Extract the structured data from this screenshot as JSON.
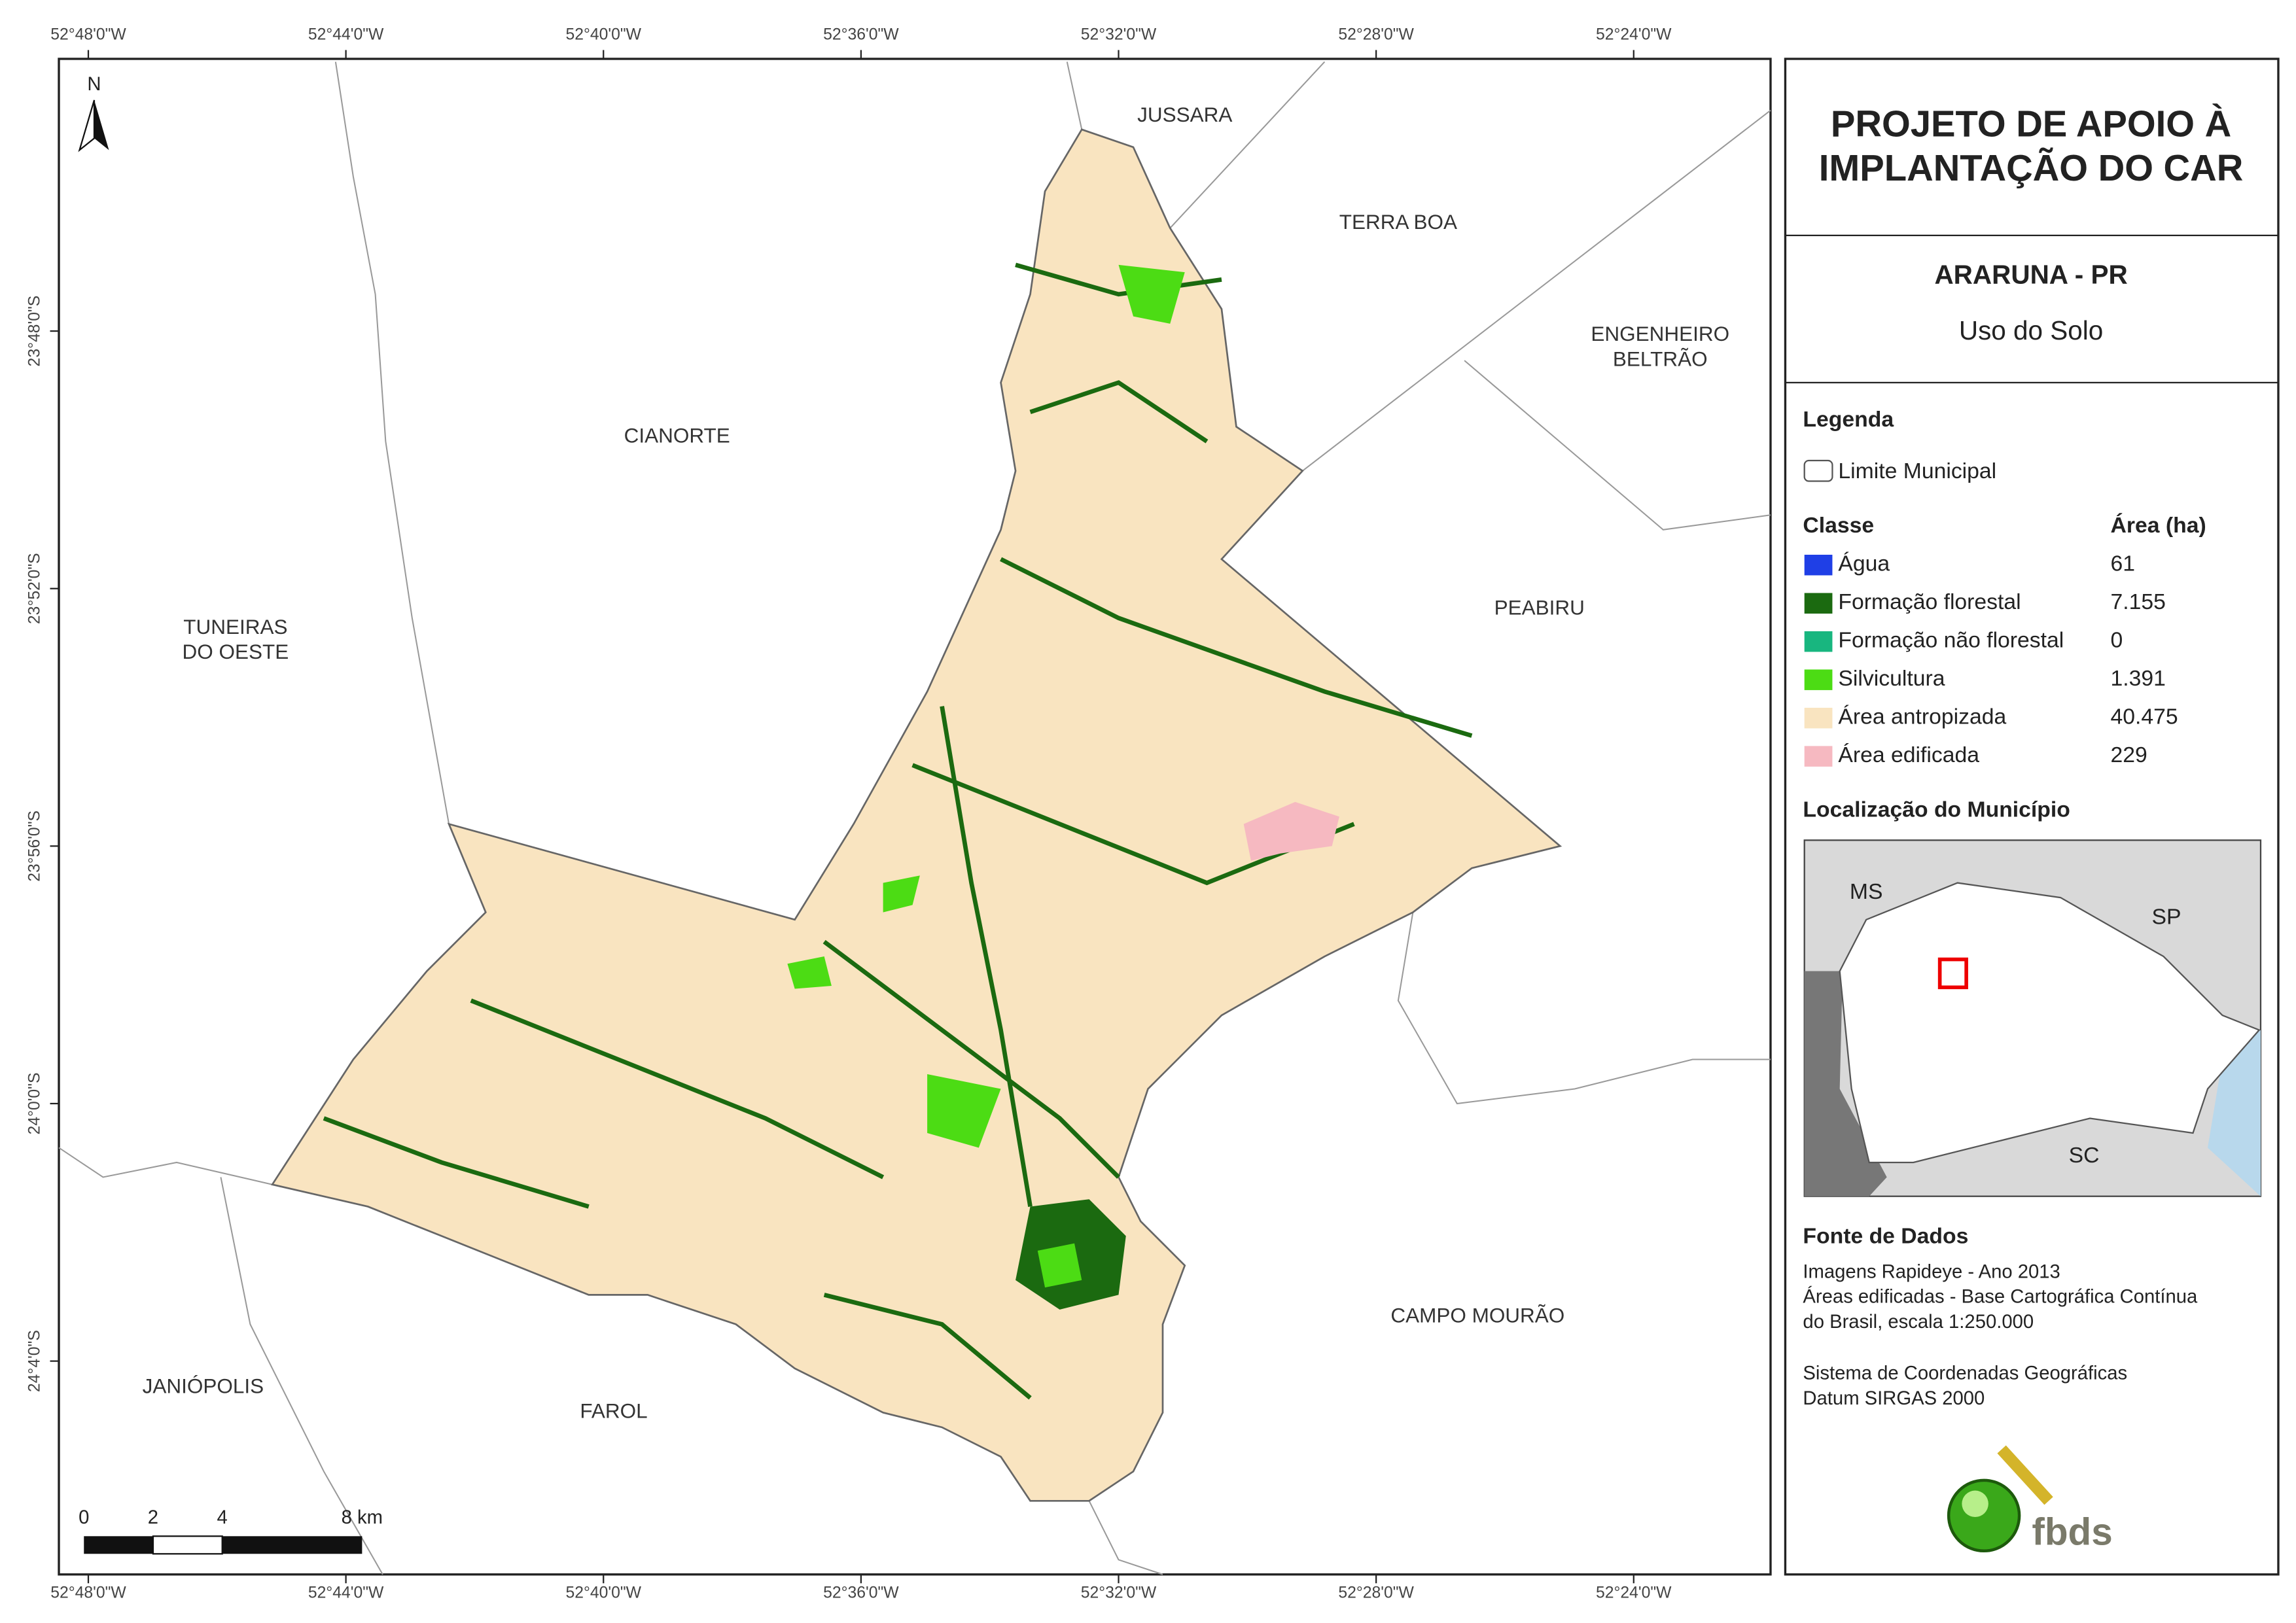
{
  "title": {
    "lines": [
      "PROJETO DE APOIO À",
      "IMPLANTAÇÃO DO CAR"
    ]
  },
  "municipality": {
    "name": "ARARUNA - PR",
    "subtitle": "Uso do Solo"
  },
  "legend": {
    "heading": "Legenda",
    "boundary": "Limite Municipal",
    "class_header": "Classe",
    "area_header": "Área (ha)",
    "classes": [
      {
        "name": "Água",
        "area": "61",
        "color": "#1f3fe6"
      },
      {
        "name": "Formação florestal",
        "area": "7.155",
        "color": "#1b6a10"
      },
      {
        "name": "Formação não florestal",
        "area": "0",
        "color": "#18b67f"
      },
      {
        "name": "Silvicultura",
        "area": "1.391",
        "color": "#4cdc14"
      },
      {
        "name": "Área antropizada",
        "area": "40.475",
        "color": "#f9e4c0"
      },
      {
        "name": "Área edificada",
        "area": "229",
        "color": "#f6b9c1"
      }
    ]
  },
  "location": {
    "heading": "Localização do Município",
    "labels": [
      "MS",
      "SP",
      "SC"
    ]
  },
  "source": {
    "heading": "Fonte de Dados",
    "lines": [
      "Imagens Rapideye - Ano 2013",
      "Áreas edificadas - Base Cartográfica Contínua",
      "do Brasil, escala 1:250.000",
      "Sistema de Coordenadas Geográficas",
      "Datum SIRGAS 2000"
    ]
  },
  "logo": "fbds",
  "map": {
    "north": "N",
    "neighbors": [
      {
        "lines": [
          "JUSSARA"
        ]
      },
      {
        "lines": [
          "TERRA BOA"
        ]
      },
      {
        "lines": [
          "ENGENHEIRO",
          "BELTRÃO"
        ]
      },
      {
        "lines": [
          "CIANORTE"
        ]
      },
      {
        "lines": [
          "PEABIRU"
        ]
      },
      {
        "lines": [
          "TUNEIRAS",
          "DO OESTE"
        ]
      },
      {
        "lines": [
          "JANIÓPOLIS"
        ]
      },
      {
        "lines": [
          "FAROL"
        ]
      },
      {
        "lines": [
          "CAMPO MOURÃO"
        ]
      }
    ],
    "scale_labels": [
      "0",
      "2",
      "4",
      "8 km"
    ],
    "longitudes": [
      "52°48'0\"W",
      "52°44'0\"W",
      "52°40'0\"W",
      "52°36'0\"W",
      "52°32'0\"W",
      "52°28'0\"W",
      "52°24'0\"W"
    ],
    "latitudes": [
      "23°48'0\"S",
      "23°52'0\"S",
      "23°56'0\"S",
      "24°0'0\"S",
      "24°4'0\"S"
    ]
  }
}
